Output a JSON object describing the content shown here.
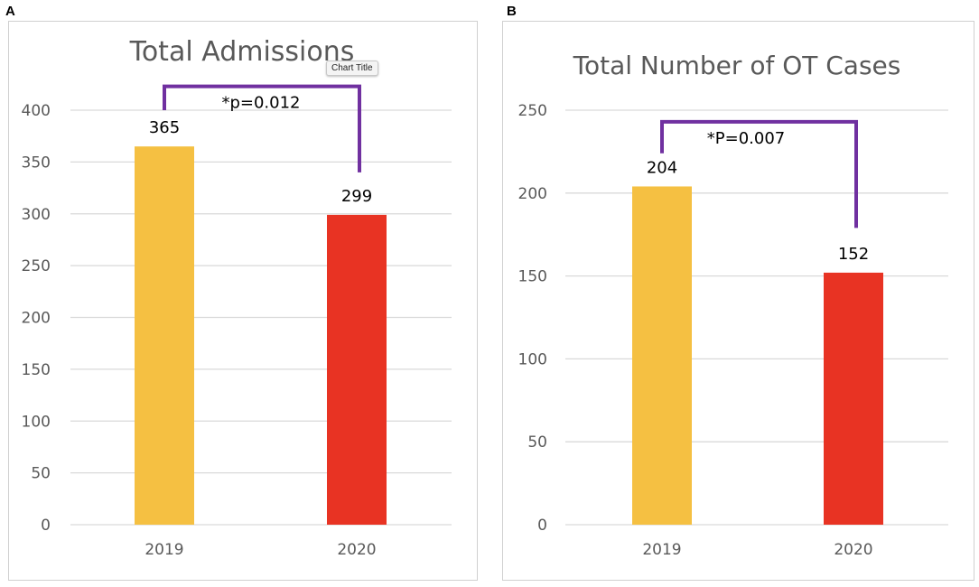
{
  "colors": {
    "bar_2019": "#f5c042",
    "bar_2020": "#e83323",
    "bracket": "#7030a0",
    "grid": "#d9d9d9"
  },
  "tooltip": {
    "text": "Chart Title"
  },
  "chart_data": [
    {
      "panel_label": "A",
      "type": "bar",
      "title": "Total Admissions",
      "categories": [
        "2019",
        "2020"
      ],
      "values": [
        365,
        299
      ],
      "value_labels": [
        "365",
        "299"
      ],
      "ylim": [
        0,
        400
      ],
      "yticks": [
        0,
        50,
        100,
        150,
        200,
        250,
        300,
        350,
        400
      ],
      "grid": true,
      "xlabel": "",
      "ylabel": "",
      "annotation": {
        "text": "*p=0.012",
        "type": "significance-bracket",
        "left_y": 400,
        "right_y": 340,
        "top_y": 423
      }
    },
    {
      "panel_label": "B",
      "type": "bar",
      "title": "Total Number of OT Cases",
      "categories": [
        "2019",
        "2020"
      ],
      "values": [
        204,
        152
      ],
      "value_labels": [
        "204",
        "152"
      ],
      "ylim": [
        0,
        250
      ],
      "yticks": [
        0,
        50,
        100,
        150,
        200,
        250
      ],
      "grid": true,
      "xlabel": "",
      "ylabel": "",
      "annotation": {
        "text": "*P=0.007",
        "type": "significance-bracket",
        "left_y": 224,
        "right_y": 179,
        "top_y": 243
      }
    }
  ]
}
